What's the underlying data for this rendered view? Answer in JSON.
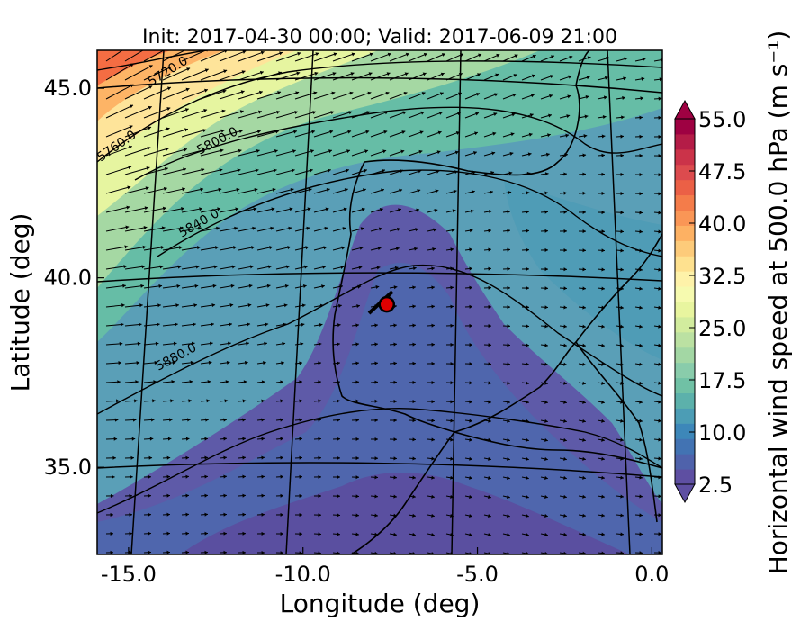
{
  "chart_data": {
    "type": "filled-contour map",
    "title": "Init: 2017-04-30 00:00; Valid: 2017-06-09 21:00",
    "xlabel": "Longitude (deg)",
    "ylabel": "Latitude (deg)",
    "xlim": [
      -15.9,
      0.3
    ],
    "ylim": [
      32.7,
      46.0
    ],
    "x_ticks": [
      {
        "value": -15,
        "label": "-15.0"
      },
      {
        "value": -10,
        "label": "-10.0"
      },
      {
        "value": -5,
        "label": "-5.0"
      },
      {
        "value": 0,
        "label": "0.0"
      }
    ],
    "y_ticks": [
      {
        "value": 45,
        "label": "45.0"
      },
      {
        "value": 40,
        "label": "40.0"
      },
      {
        "value": 35,
        "label": "35.0"
      }
    ],
    "colorbar": {
      "label": "Horizontal wind speed at 500.0 hPa (m s⁻¹)",
      "min": 2.5,
      "max": 55.0,
      "step": 2.5,
      "extend": "both",
      "tick_labels": [
        "2.5",
        "10.0",
        "17.5",
        "25.0",
        "32.5",
        "40.0",
        "47.5",
        "55.0"
      ],
      "colormap": "Spectral_r",
      "colors": [
        "#5e4fa2",
        "#4f62ab",
        "#4273b3",
        "#3d87b9",
        "#4c9db5",
        "#5cb1ab",
        "#70c1a5",
        "#89ccab",
        "#a3d7a4",
        "#bbe1a2",
        "#d2ec9e",
        "#e8f59f",
        "#f6faaf",
        "#fef2a9",
        "#fee18f",
        "#fdcb7a",
        "#fdb163",
        "#fa9656",
        "#f47c4a",
        "#eb6046",
        "#dc4b4e",
        "#cb3349",
        "#b41c47",
        "#9e0142"
      ]
    },
    "height_contours": {
      "units": "m",
      "levels": [
        5720,
        5760,
        5800,
        5840,
        5880
      ],
      "labels": [
        "5720.0",
        "5760.0",
        "5800.0",
        "5840.0",
        "5880.0"
      ]
    },
    "wind_vectors": {
      "shown": true,
      "prevailing_direction": "west to east",
      "color": "#000000"
    },
    "marker": {
      "lon": -7.6,
      "lat": 39.3,
      "color": "#e00000"
    },
    "grid": true
  }
}
